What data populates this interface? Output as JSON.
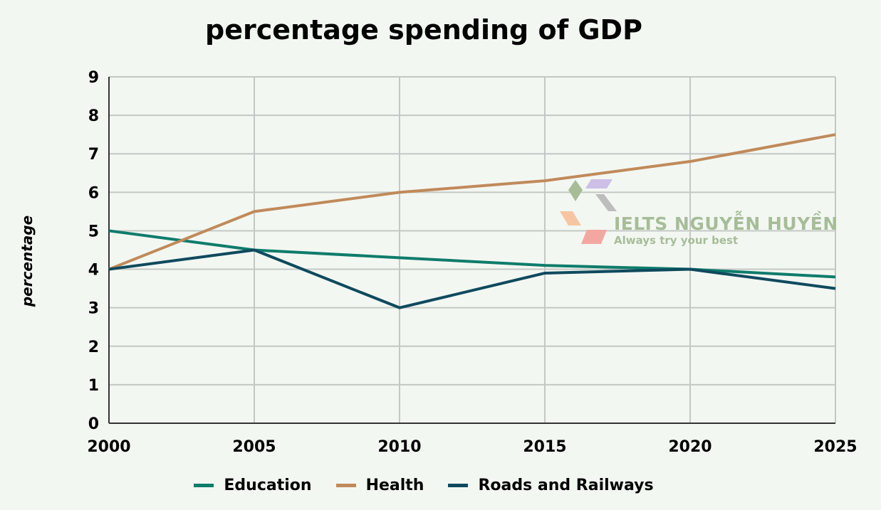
{
  "chart_data": {
    "type": "line",
    "title": "percentage spending of GDP",
    "xlabel": "",
    "ylabel": "percentage",
    "x": [
      2000,
      2005,
      2010,
      2015,
      2020,
      2025
    ],
    "xlim": [
      2000,
      2025
    ],
    "ylim": [
      0,
      9
    ],
    "yticks": [
      0,
      1,
      2,
      3,
      4,
      5,
      6,
      7,
      8,
      9
    ],
    "grid": true,
    "legend_position": "bottom",
    "series": [
      {
        "name": "Education",
        "color": "#0e7c6b",
        "values": [
          5.0,
          4.5,
          4.3,
          4.1,
          4.0,
          3.8
        ]
      },
      {
        "name": "Health",
        "color": "#c08a5a",
        "values": [
          4.0,
          5.5,
          6.0,
          6.3,
          6.8,
          7.5
        ]
      },
      {
        "name": "Roads and Railways",
        "color": "#0f4a5e",
        "values": [
          4.0,
          4.5,
          3.0,
          3.9,
          4.0,
          3.5
        ]
      }
    ]
  },
  "watermark": {
    "brand": "IELTS NGUYỄN HUYỀN",
    "tagline": "Always try your best",
    "logo_letters": [
      "I",
      "E",
      "L",
      "T",
      "S"
    ]
  }
}
